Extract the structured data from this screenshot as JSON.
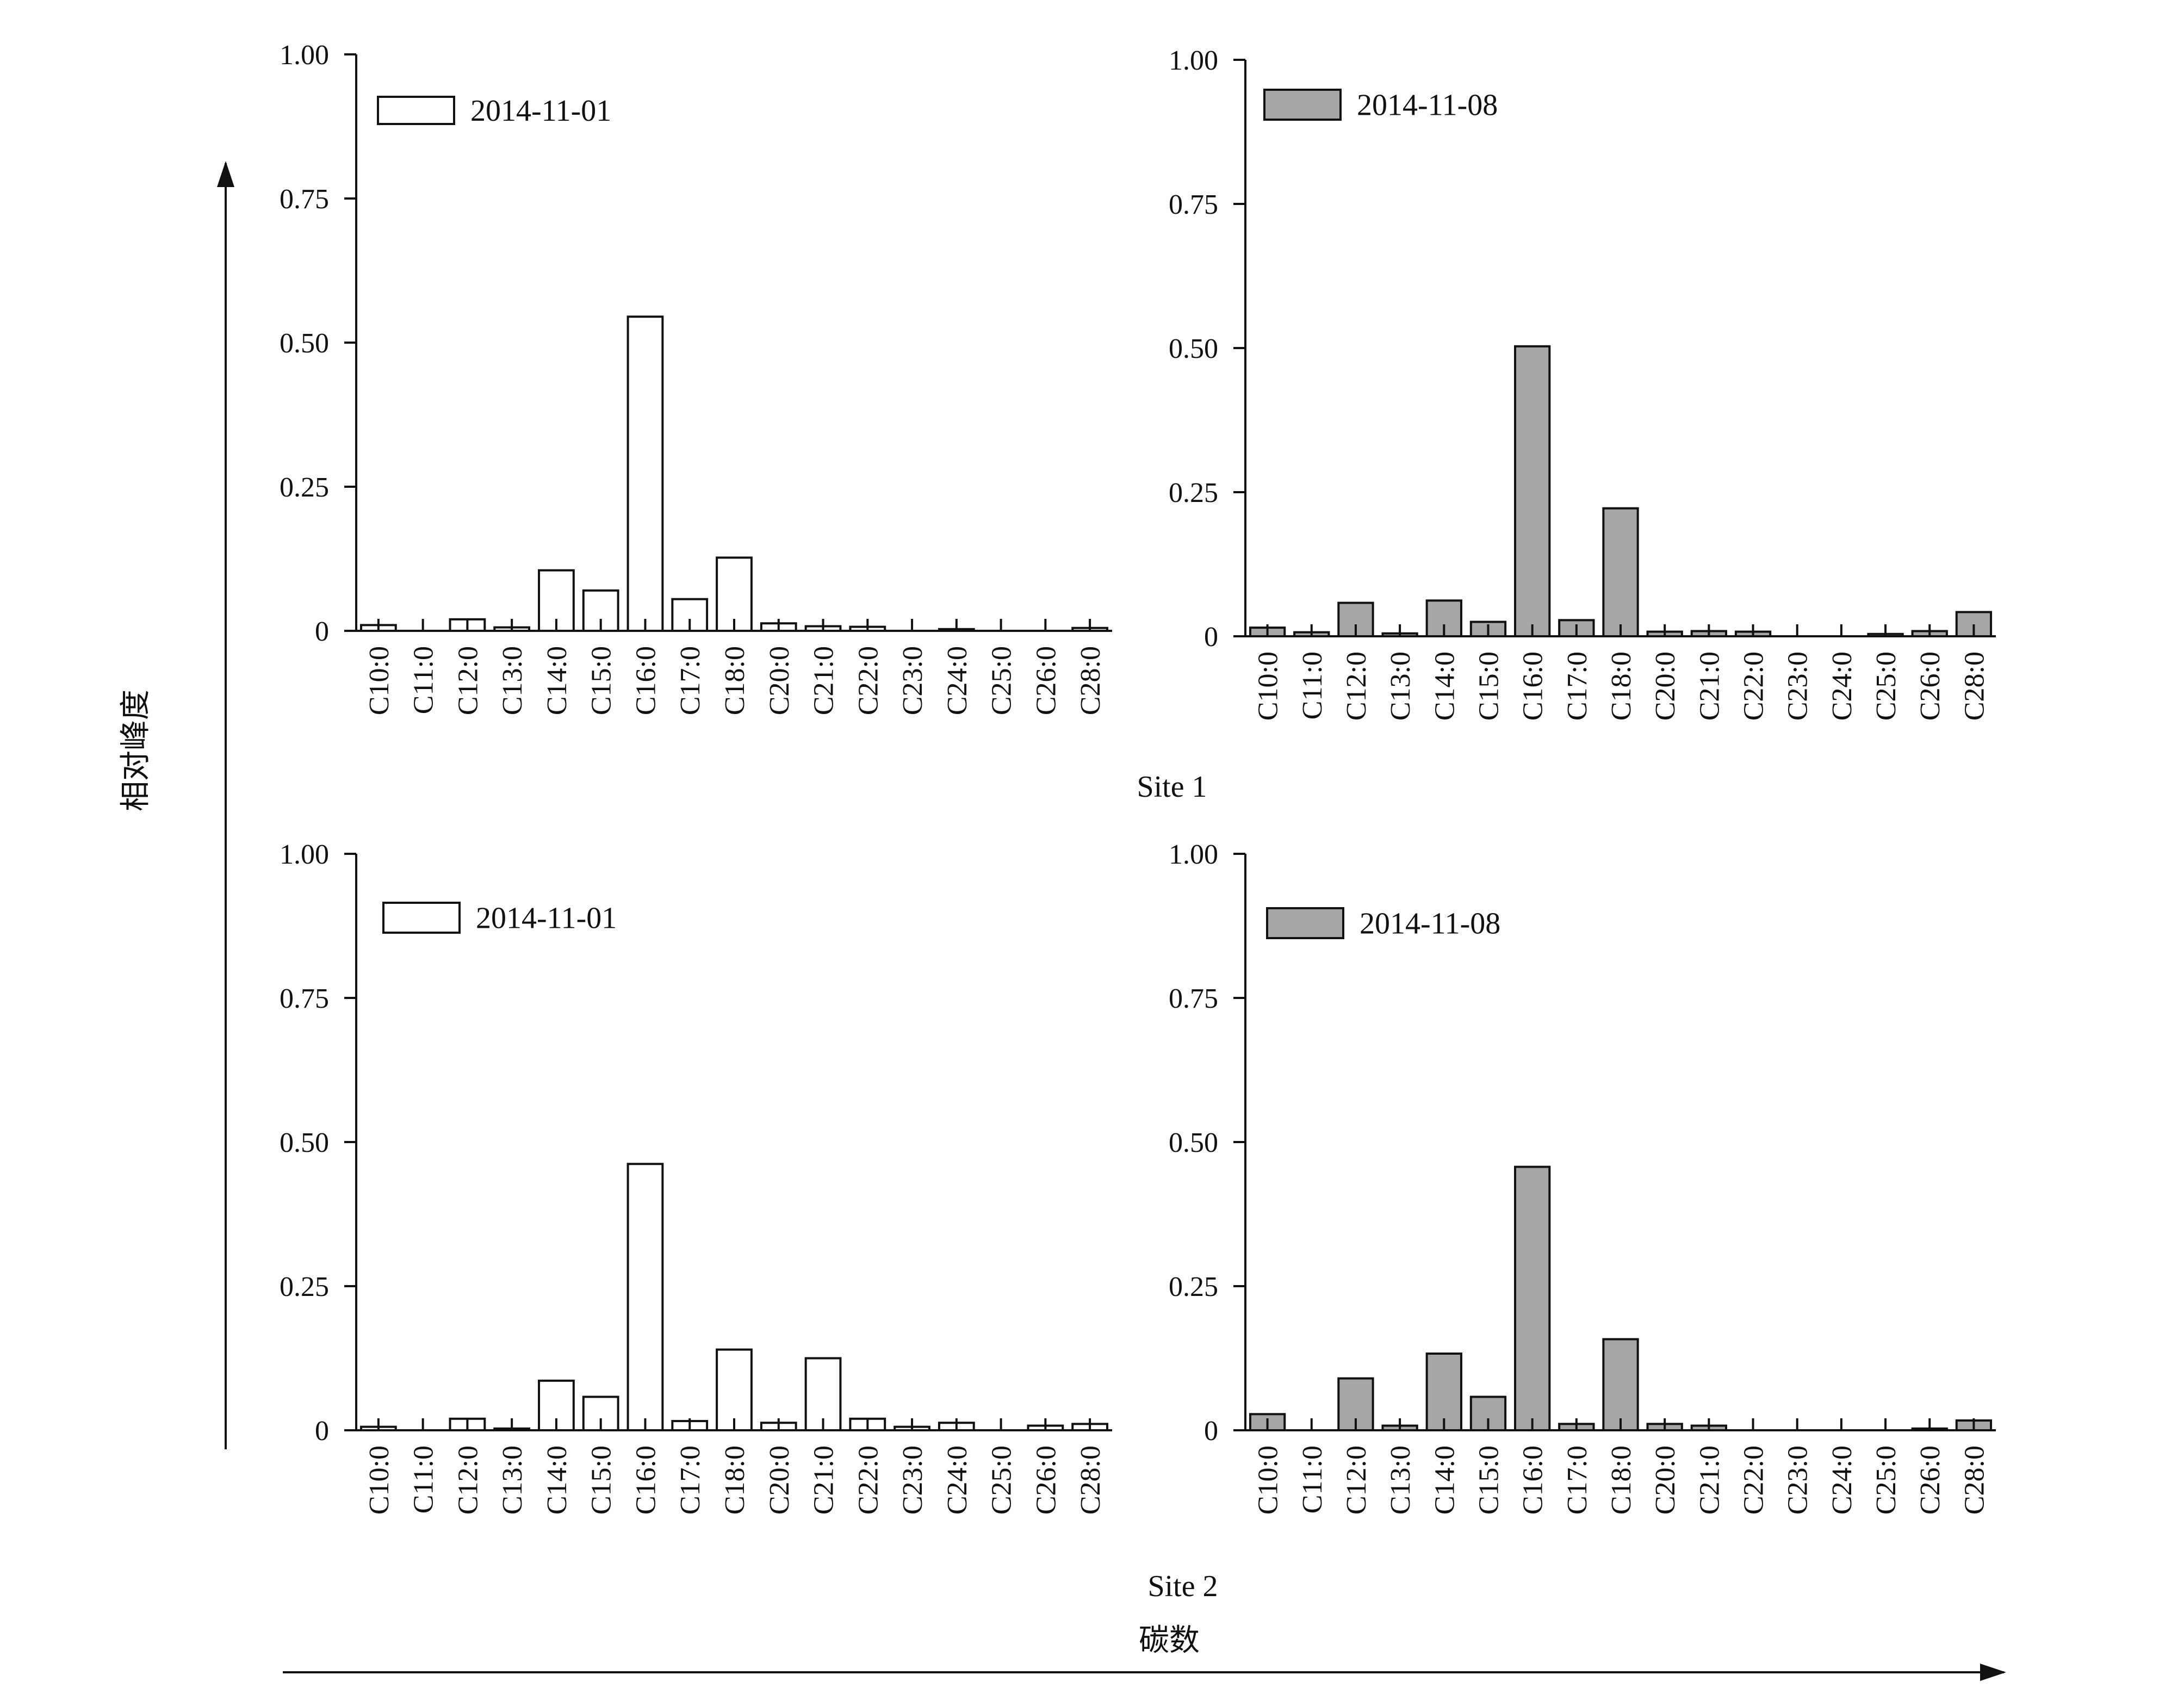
{
  "figure": {
    "ylabel": "相对峰度",
    "xlabel": "碳数",
    "site_labels": [
      "Site 1",
      "Site 2"
    ]
  },
  "colors": {
    "series_2014_11_01": "#ffffff",
    "series_2014_11_08": "#a6a6a6",
    "stroke": "#111111"
  },
  "chart_data": [
    {
      "type": "bar",
      "site": "Site 1",
      "legend": "2014-11-01",
      "fill": "#ffffff",
      "categories": [
        "C10:0",
        "C11:0",
        "C12:0",
        "C13:0",
        "C14:0",
        "C15:0",
        "C16:0",
        "C17:0",
        "C18:0",
        "C20:0",
        "C21:0",
        "C22:0",
        "C23:0",
        "C24:0",
        "C25:0",
        "C26:0",
        "C28:0"
      ],
      "values": [
        0.01,
        0,
        0.02,
        0.006,
        0.105,
        0.07,
        0.545,
        0.055,
        0.127,
        0.013,
        0.008,
        0.007,
        0,
        0.003,
        0,
        0,
        0.005
      ],
      "ylim": [
        0,
        1
      ],
      "yticks": [
        "0",
        "0.25",
        "0.50",
        "0.75",
        "1.00"
      ]
    },
    {
      "type": "bar",
      "site": "Site 1",
      "legend": "2014-11-08",
      "fill": "#a6a6a6",
      "categories": [
        "C10:0",
        "C11:0",
        "C12:0",
        "C13:0",
        "C14:0",
        "C15:0",
        "C16:0",
        "C17:0",
        "C18:0",
        "C20:0",
        "C21:0",
        "C22:0",
        "C23:0",
        "C24:0",
        "C25:0",
        "C26:0",
        "C28:0"
      ],
      "values": [
        0.015,
        0.007,
        0.058,
        0.005,
        0.062,
        0.025,
        0.503,
        0.028,
        0.222,
        0.008,
        0.009,
        0.008,
        0,
        0,
        0.004,
        0.009,
        0.042
      ],
      "ylim": [
        0,
        1
      ],
      "yticks": [
        "0",
        "0.25",
        "0.50",
        "0.75",
        "1.00"
      ]
    },
    {
      "type": "bar",
      "site": "Site 2",
      "legend": "2014-11-01",
      "fill": "#ffffff",
      "categories": [
        "C10:0",
        "C11:0",
        "C12:0",
        "C13:0",
        "C14:0",
        "C15:0",
        "C16:0",
        "C17:0",
        "C18:0",
        "C20:0",
        "C21:0",
        "C22:0",
        "C23:0",
        "C24:0",
        "C25:0",
        "C26:0",
        "C28:0"
      ],
      "values": [
        0.006,
        0,
        0.02,
        0.003,
        0.086,
        0.058,
        0.462,
        0.016,
        0.14,
        0.013,
        0.125,
        0.02,
        0.006,
        0.013,
        0,
        0.008,
        0.011
      ],
      "ylim": [
        0,
        1
      ],
      "yticks": [
        "0",
        "0.25",
        "0.50",
        "0.75",
        "1.00"
      ]
    },
    {
      "type": "bar",
      "site": "Site 2",
      "legend": "2014-11-08",
      "fill": "#a6a6a6",
      "categories": [
        "C10:0",
        "C11:0",
        "C12:0",
        "C13:0",
        "C14:0",
        "C15:0",
        "C16:0",
        "C17:0",
        "C18:0",
        "C20:0",
        "C21:0",
        "C22:0",
        "C23:0",
        "C24:0",
        "C25:0",
        "C26:0",
        "C28:0"
      ],
      "values": [
        0.028,
        0,
        0.09,
        0.008,
        0.133,
        0.058,
        0.457,
        0.011,
        0.158,
        0.011,
        0.008,
        0,
        0,
        0,
        0,
        0.003,
        0.017
      ],
      "ylim": [
        0,
        1
      ],
      "yticks": [
        "0",
        "0.25",
        "0.50",
        "0.75",
        "1.00"
      ]
    }
  ]
}
